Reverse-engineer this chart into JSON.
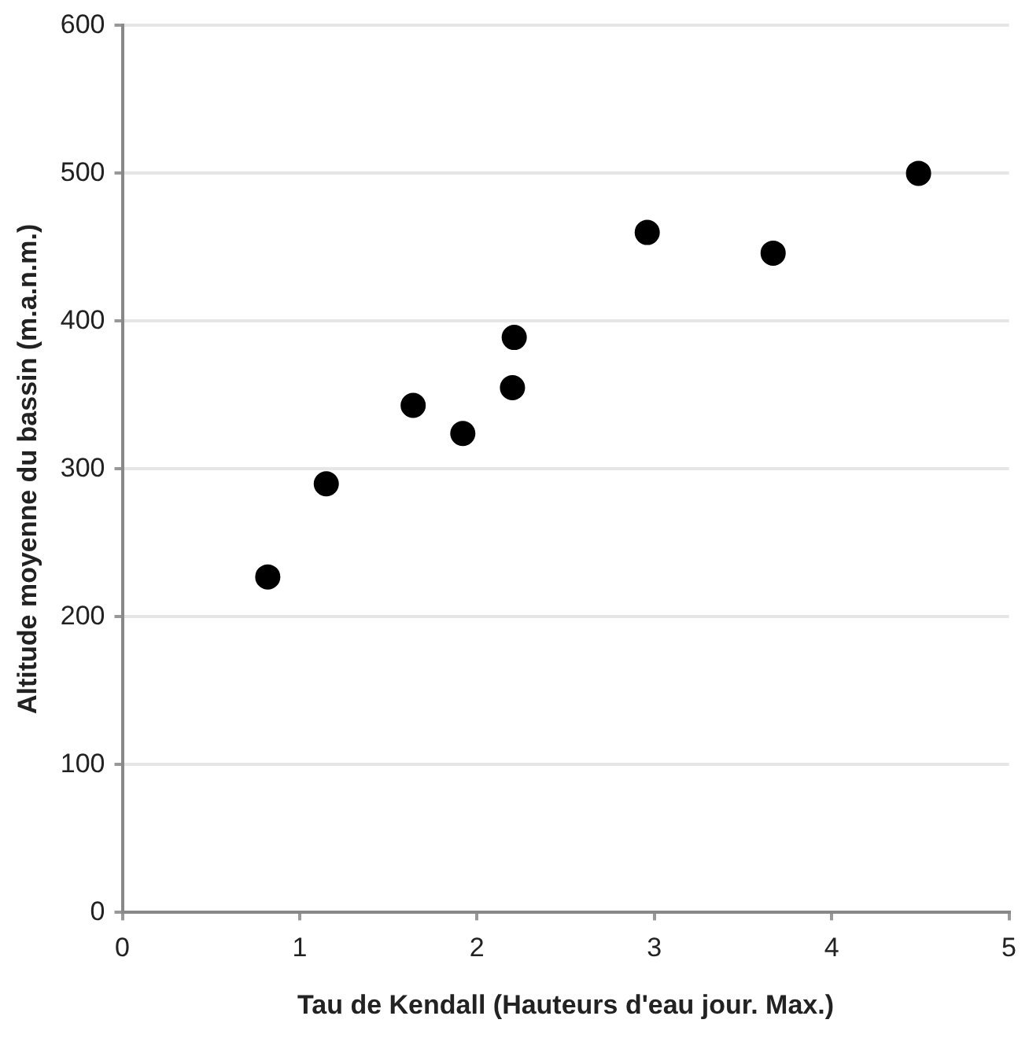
{
  "chart_data": {
    "type": "scatter",
    "xlabel": "Tau de Kendall (Hauteurs d'eau jour. Max.)",
    "ylabel": "Altitude moyenne du bassin (m.a.n.m.)",
    "x": [
      0.82,
      1.15,
      1.64,
      1.92,
      2.2,
      2.21,
      2.96,
      3.67,
      4.49
    ],
    "series": [
      {
        "color": "#000000",
        "values": [
          227,
          290,
          343,
          324,
          355,
          389,
          460,
          446,
          500
        ]
      }
    ],
    "xlim": [
      0,
      5
    ],
    "xticks": [
      0,
      1,
      2,
      3,
      4,
      5
    ],
    "ylim": [
      0,
      600
    ],
    "yticks": [
      0,
      100,
      200,
      300,
      400,
      500,
      600
    ],
    "grid": "y",
    "legend": false,
    "marker": "circle"
  }
}
